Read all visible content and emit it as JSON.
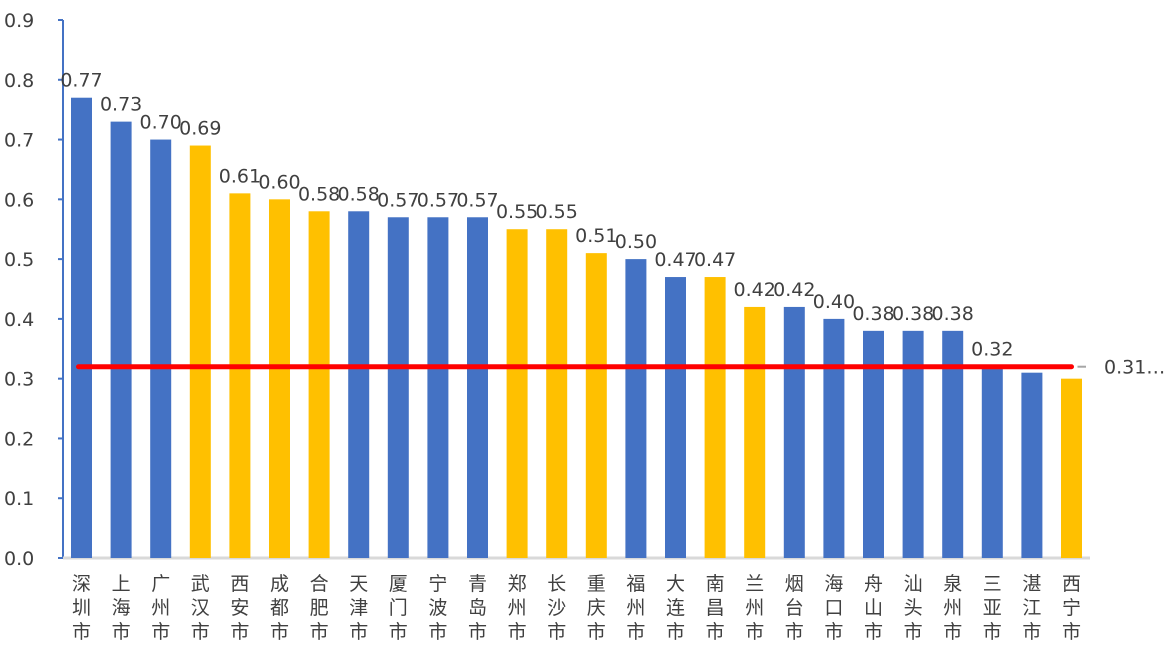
{
  "chart_data": {
    "type": "bar",
    "categories": [
      "深圳市",
      "上海市",
      "广州市",
      "武汉市",
      "西安市",
      "成都市",
      "合肥市",
      "天津市",
      "厦门市",
      "宁波市",
      "青岛市",
      "郑州市",
      "长沙市",
      "重庆市",
      "福州市",
      "大连市",
      "南昌市",
      "兰州市",
      "烟台市",
      "海口市",
      "舟山市",
      "汕头市",
      "泉州市",
      "三亚市",
      "湛江市",
      "西宁市"
    ],
    "values": [
      0.77,
      0.73,
      0.7,
      0.69,
      0.61,
      0.6,
      0.58,
      0.58,
      0.57,
      0.57,
      0.57,
      0.55,
      0.55,
      0.51,
      0.5,
      0.47,
      0.47,
      0.42,
      0.42,
      0.4,
      0.38,
      0.38,
      0.38,
      0.32,
      0.31,
      0.3
    ],
    "data_labels": [
      "0.77",
      "0.73",
      "0.70",
      "0.69",
      "0.61",
      "0.60",
      "0.58",
      "0.58",
      "0.57",
      "0.57",
      "0.57",
      "0.55",
      "0.55",
      "0.51",
      "0.50",
      "0.47",
      "0.47",
      "0.42",
      "0.42",
      "0.40",
      "0.38",
      "0.38",
      "0.38",
      "0.32",
      "",
      ""
    ],
    "bar_colors": [
      "#4472C4",
      "#4472C4",
      "#4472C4",
      "#FFC000",
      "#FFC000",
      "#FFC000",
      "#FFC000",
      "#4472C4",
      "#4472C4",
      "#4472C4",
      "#4472C4",
      "#FFC000",
      "#FFC000",
      "#FFC000",
      "#4472C4",
      "#4472C4",
      "#FFC000",
      "#FFC000",
      "#4472C4",
      "#4472C4",
      "#4472C4",
      "#4472C4",
      "#4472C4",
      "#4472C4",
      "#4472C4",
      "#FFC000"
    ],
    "ylim": [
      0,
      0.9
    ],
    "yticks": [
      "0.0",
      "0.1",
      "0.2",
      "0.3",
      "0.4",
      "0.5",
      "0.6",
      "0.7",
      "0.8",
      "0.9"
    ],
    "reference_line": {
      "value": 0.32,
      "color": "#FF0000",
      "label": "0.31…"
    },
    "grid": false,
    "xlabel": "",
    "ylabel": "",
    "title": ""
  }
}
